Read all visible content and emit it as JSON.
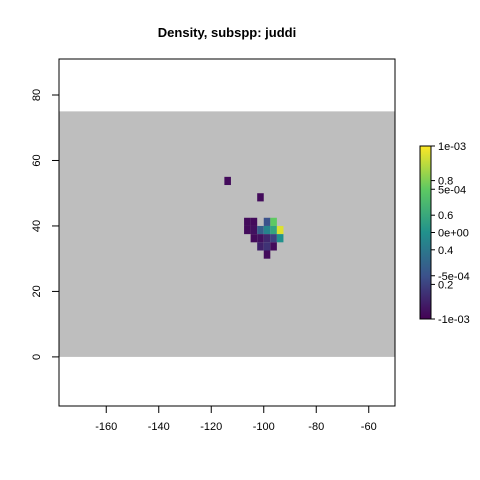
{
  "chart_data": {
    "type": "heatmap",
    "title": "Density, subspp: juddi",
    "xlabel": "",
    "ylabel": "",
    "xlim": [
      -178,
      -50
    ],
    "ylim": [
      -15,
      91
    ],
    "background_band": {
      "ymin": 0,
      "ymax": 75,
      "color": "#bebebe"
    },
    "x_ticks": [
      -160,
      -140,
      -120,
      -100,
      -80,
      -60
    ],
    "y_ticks": [
      0,
      20,
      40,
      60,
      80
    ],
    "cell_size": 2.5,
    "cells": [
      {
        "x": -113.75,
        "y": 53.75,
        "v": 0.03
      },
      {
        "x": -101.25,
        "y": 48.75,
        "v": 0.03
      },
      {
        "x": -106.25,
        "y": 41.25,
        "v": 0.03
      },
      {
        "x": -103.75,
        "y": 41.25,
        "v": 0.03
      },
      {
        "x": -98.75,
        "y": 41.25,
        "v": 0.25
      },
      {
        "x": -96.25,
        "y": 41.25,
        "v": 0.75
      },
      {
        "x": -106.25,
        "y": 38.75,
        "v": 0.03
      },
      {
        "x": -103.75,
        "y": 38.75,
        "v": 0.05
      },
      {
        "x": -101.25,
        "y": 38.75,
        "v": 0.3
      },
      {
        "x": -98.75,
        "y": 38.75,
        "v": 0.45
      },
      {
        "x": -96.25,
        "y": 38.75,
        "v": 0.58
      },
      {
        "x": -93.75,
        "y": 38.75,
        "v": 0.95
      },
      {
        "x": -103.75,
        "y": 36.25,
        "v": 0.03
      },
      {
        "x": -101.25,
        "y": 36.25,
        "v": 0.05
      },
      {
        "x": -98.75,
        "y": 36.25,
        "v": 0.12
      },
      {
        "x": -96.25,
        "y": 36.25,
        "v": 0.2
      },
      {
        "x": -93.75,
        "y": 36.25,
        "v": 0.5
      },
      {
        "x": -101.25,
        "y": 33.75,
        "v": 0.1
      },
      {
        "x": -98.75,
        "y": 33.75,
        "v": 0.15
      },
      {
        "x": -96.25,
        "y": 33.75,
        "v": 0.03
      },
      {
        "x": -98.75,
        "y": 31.25,
        "v": 0.03
      }
    ],
    "legend": {
      "type": "colorbar",
      "range": [
        0,
        1
      ],
      "colors": [
        "#440154",
        "#3b528b",
        "#21918c",
        "#5ec962",
        "#fde725"
      ],
      "labels_right": [
        "1e-03",
        "5e-04",
        "0e+00",
        "-5e-04",
        "-1e-03"
      ],
      "labels_right_values": [
        1,
        0.75,
        0.5,
        0.25,
        0
      ],
      "labels_left": [
        "0.8",
        "0.6",
        "0.4",
        "0.2"
      ],
      "labels_left_values": [
        0.8,
        0.6,
        0.4,
        0.2
      ]
    }
  }
}
